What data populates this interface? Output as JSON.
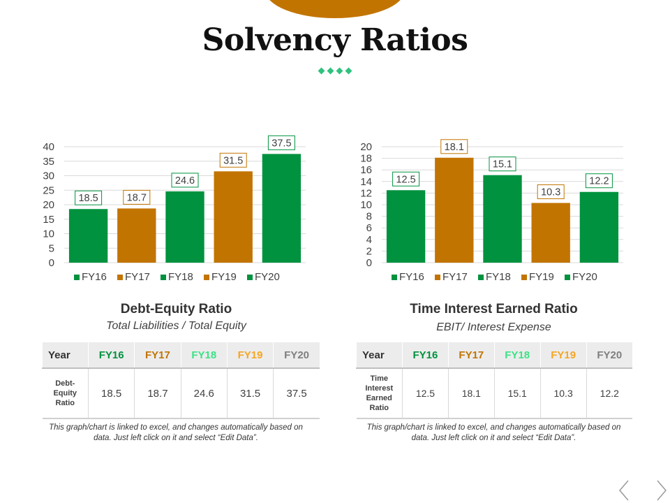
{
  "page": {
    "title": "Solvency Ratios"
  },
  "colors": {
    "green": "#00923f",
    "orange": "#c27400",
    "fy18": "#3ce285",
    "fy19": "#f6a623",
    "fy20": "#7f7f7f"
  },
  "chart_data": [
    {
      "type": "bar",
      "categories": [
        "FY16",
        "FY17",
        "FY18",
        "FY19",
        "FY20"
      ],
      "values": [
        18.5,
        18.7,
        24.6,
        31.5,
        37.5
      ],
      "value_labels": [
        "18.5",
        "18.7",
        "24.6",
        "31.5",
        "37.5"
      ],
      "colors": [
        "#00923f",
        "#c27400",
        "#00923f",
        "#c27400",
        "#00923f"
      ],
      "ylim": [
        0,
        40
      ],
      "yticks": [
        "0",
        "5",
        "10",
        "15",
        "20",
        "25",
        "30",
        "35",
        "40"
      ],
      "legend": [
        "FY16",
        "FY17",
        "FY18",
        "FY19",
        "FY20"
      ],
      "grid": true,
      "legend_position": "bottom",
      "title": "",
      "xlabel": "",
      "ylabel": ""
    },
    {
      "type": "bar",
      "categories": [
        "FY16",
        "FY17",
        "FY18",
        "FY19",
        "FY20"
      ],
      "values": [
        12.5,
        18.1,
        15.1,
        10.3,
        12.2
      ],
      "value_labels": [
        "12.5",
        "18.1",
        "15.1",
        "10.3",
        "12.2"
      ],
      "colors": [
        "#00923f",
        "#c27400",
        "#00923f",
        "#c27400",
        "#00923f"
      ],
      "ylim": [
        0,
        20
      ],
      "yticks": [
        "0",
        "2",
        "4",
        "6",
        "8",
        "10",
        "12",
        "14",
        "16",
        "18",
        "20"
      ],
      "legend": [
        "FY16",
        "FY17",
        "FY18",
        "FY19",
        "FY20"
      ],
      "grid": true,
      "legend_position": "bottom",
      "title": "",
      "xlabel": "",
      "ylabel": ""
    }
  ],
  "left": {
    "title": "Debt-Equity Ratio",
    "formula": "Total Liabilities / Total Equity",
    "table": {
      "year_header": "Year",
      "years": [
        "FY16",
        "FY17",
        "FY18",
        "FY19",
        "FY20"
      ],
      "row_label": "Debt-\nEquity\nRatio",
      "values": [
        "18.5",
        "18.7",
        "24.6",
        "31.5",
        "37.5"
      ]
    },
    "footnote": "This graph/chart is linked to excel, and changes automatically based on data. Just left click on it and select “Edit Data”."
  },
  "right": {
    "title": "Time Interest Earned Ratio",
    "formula": "EBIT/ Interest Expense",
    "table": {
      "year_header": "Year",
      "years": [
        "FY16",
        "FY17",
        "FY18",
        "FY19",
        "FY20"
      ],
      "row_label": "Time\nInterest\nEarned\nRatio",
      "values": [
        "12.5",
        "18.1",
        "15.1",
        "10.3",
        "12.2"
      ]
    },
    "footnote": "This graph/chart is linked to excel, and changes automatically based on data. Just left click on it and select “Edit Data”."
  },
  "nav": {
    "prev_icon": "chevron-left-icon",
    "next_icon": "chevron-right-icon"
  }
}
